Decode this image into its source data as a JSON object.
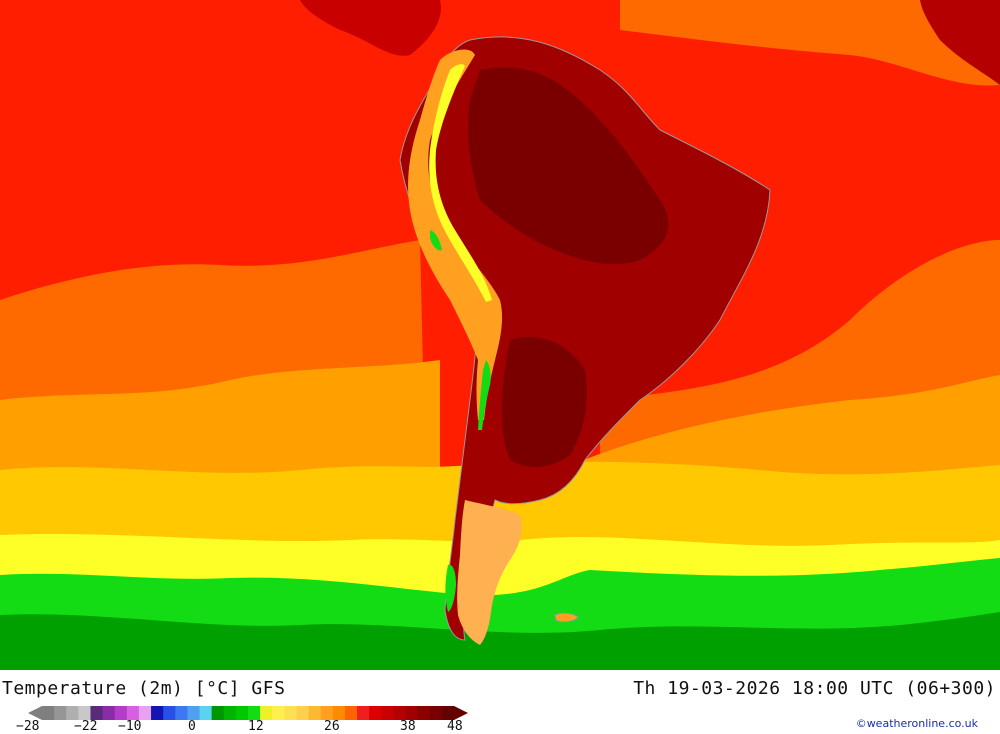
{
  "header": {
    "title_left": "Temperature (2m) [°C] GFS",
    "title_right": "Th 19-03-2026 18:00 UTC (06+300)"
  },
  "legend": {
    "ticks": [
      "-28",
      "-22",
      "-10",
      "0",
      "12",
      "26",
      "38",
      "48"
    ],
    "colors": [
      "#7f7f7f",
      "#969696",
      "#afafaf",
      "#c8c8c8",
      "#5a2b7c",
      "#8a2ba8",
      "#b43cc8",
      "#d760e0",
      "#e8a0f0",
      "#1414b4",
      "#2850e6",
      "#3c78f0",
      "#50a0f0",
      "#5ad2f0",
      "#009600",
      "#00b400",
      "#00c800",
      "#14dc14",
      "#f0f028",
      "#fff050",
      "#ffe050",
      "#ffd050",
      "#ffb832",
      "#ffa020",
      "#ff8c00",
      "#ff6400",
      "#f01e1e",
      "#dc0000",
      "#c80000",
      "#b40000",
      "#a00000",
      "#8c0000",
      "#780000",
      "#640000"
    ]
  },
  "map": {
    "ocean_colors": {
      "equatorial": "#ff1e00",
      "tropical": "#ff6a00",
      "subtropical": "#ff9f00",
      "temperate": "#ffc800",
      "cool": "#ffff28",
      "cold": "#14dc14",
      "polar": "#00a000"
    },
    "land_colors": {
      "hot": "#a00000",
      "very_hot": "#7a0000",
      "warm": "#ffa020",
      "andes": "#ffff28",
      "mountain_cold": "#14dc14",
      "patagonia": "#ffb050"
    }
  },
  "credit": "©weatheronline.co.uk"
}
